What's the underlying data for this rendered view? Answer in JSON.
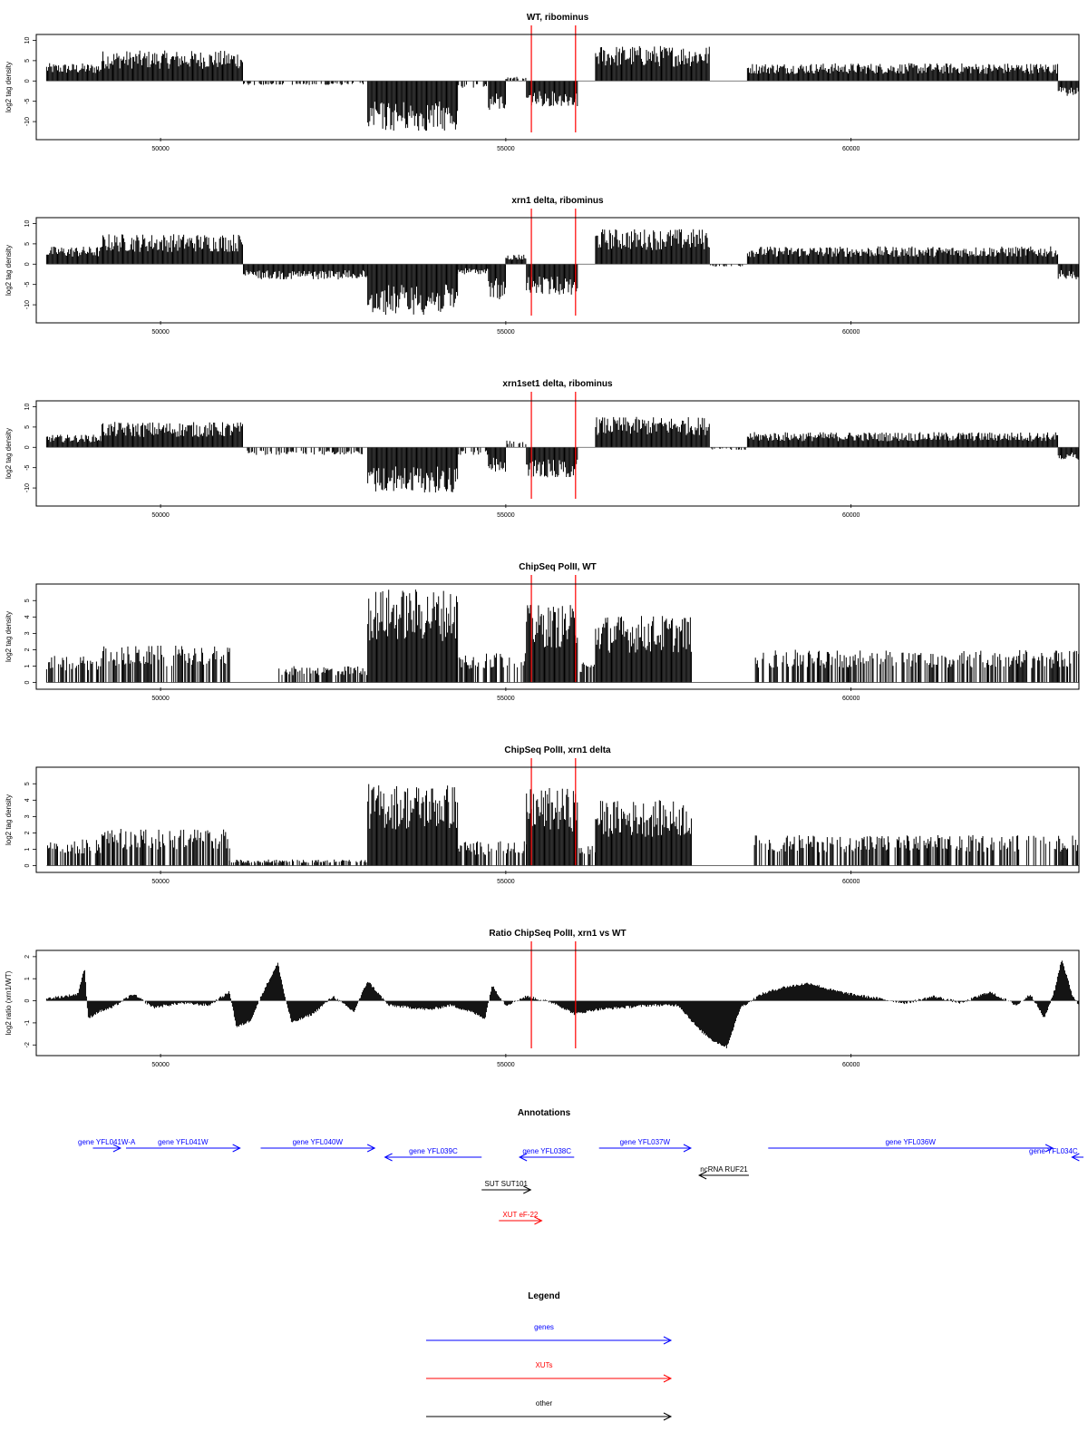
{
  "colors": {
    "gene": "#0000ff",
    "xut": "#ff0000",
    "other": "#000000",
    "marker": "#ff0000",
    "bars": "#000000"
  },
  "chart_data": [
    {
      "type": "bar",
      "title": "WT, ribominus",
      "ylabel": "log2 tag density",
      "xlim": [
        48200,
        63300
      ],
      "ylim": [
        -14,
        11
      ],
      "yticks": [
        10,
        5,
        0,
        -5,
        -10
      ],
      "xticks": [
        50000,
        55000,
        60000
      ],
      "markers": [
        55370,
        56010
      ],
      "grid": false,
      "segments": [
        {
          "x": [
            48350,
            49150
          ],
          "y": 3.5
        },
        {
          "x": [
            49150,
            51200
          ],
          "y": 6
        },
        {
          "x": [
            51200,
            53000
          ],
          "y": -0.8
        },
        {
          "x": [
            53000,
            54300
          ],
          "y": -10
        },
        {
          "x": [
            54300,
            54750
          ],
          "y": -1.5
        },
        {
          "x": [
            54750,
            55000
          ],
          "y": -6
        },
        {
          "x": [
            55000,
            55300
          ],
          "y": 0.8
        },
        {
          "x": [
            55300,
            56050
          ],
          "y": -5
        },
        {
          "x": [
            56050,
            56300
          ],
          "y": 0
        },
        {
          "x": [
            56300,
            57950
          ],
          "y": 7
        },
        {
          "x": [
            57950,
            58500
          ],
          "y": 0
        },
        {
          "x": [
            58500,
            63000
          ],
          "y": 3.5
        },
        {
          "x": [
            63000,
            63300
          ],
          "y": -3
        }
      ]
    },
    {
      "type": "bar",
      "title": "xrn1 delta, ribominus",
      "ylabel": "log2 tag density",
      "xlim": [
        48200,
        63300
      ],
      "ylim": [
        -14,
        11
      ],
      "yticks": [
        10,
        5,
        0,
        -5,
        -10
      ],
      "xticks": [
        50000,
        55000,
        60000
      ],
      "markers": [
        55370,
        56010
      ],
      "grid": false,
      "segments": [
        {
          "x": [
            48350,
            49150
          ],
          "y": 3.5
        },
        {
          "x": [
            49150,
            51200
          ],
          "y": 6
        },
        {
          "x": [
            51200,
            53000
          ],
          "y": -3
        },
        {
          "x": [
            53000,
            54300
          ],
          "y": -10
        },
        {
          "x": [
            54300,
            54750
          ],
          "y": -2
        },
        {
          "x": [
            54750,
            55000
          ],
          "y": -7
        },
        {
          "x": [
            55000,
            55300
          ],
          "y": 2
        },
        {
          "x": [
            55300,
            56050
          ],
          "y": -6
        },
        {
          "x": [
            56050,
            56300
          ],
          "y": 0
        },
        {
          "x": [
            56300,
            57950
          ],
          "y": 7
        },
        {
          "x": [
            57950,
            58500
          ],
          "y": -0.5
        },
        {
          "x": [
            58500,
            63000
          ],
          "y": 3.5
        },
        {
          "x": [
            63000,
            63300
          ],
          "y": -3
        }
      ]
    },
    {
      "type": "bar",
      "title": "xrn1set1 delta, ribominus",
      "ylabel": "log2 tag density",
      "xlim": [
        48200,
        63300
      ],
      "ylim": [
        -14,
        11
      ],
      "yticks": [
        10,
        5,
        0,
        -5,
        -10
      ],
      "xticks": [
        50000,
        55000,
        60000
      ],
      "markers": [
        55370,
        56010
      ],
      "grid": false,
      "segments": [
        {
          "x": [
            48350,
            49150
          ],
          "y": 2.5
        },
        {
          "x": [
            49150,
            51200
          ],
          "y": 5
        },
        {
          "x": [
            51200,
            53000
          ],
          "y": -1.5
        },
        {
          "x": [
            53000,
            54300
          ],
          "y": -9
        },
        {
          "x": [
            54300,
            54750
          ],
          "y": -1.5
        },
        {
          "x": [
            54750,
            55000
          ],
          "y": -5
        },
        {
          "x": [
            55000,
            55300
          ],
          "y": 1.5
        },
        {
          "x": [
            55300,
            56050
          ],
          "y": -6
        },
        {
          "x": [
            56050,
            56300
          ],
          "y": 0
        },
        {
          "x": [
            56300,
            57950
          ],
          "y": 6
        },
        {
          "x": [
            57950,
            58500
          ],
          "y": -0.5
        },
        {
          "x": [
            58500,
            63000
          ],
          "y": 3
        },
        {
          "x": [
            63000,
            63300
          ],
          "y": -2.5
        }
      ]
    },
    {
      "type": "bar",
      "title": "ChipSeq PolII, WT",
      "ylabel": "log2 tag density",
      "xlim": [
        48200,
        63300
      ],
      "ylim": [
        -0.3,
        5.9
      ],
      "yticks": [
        5,
        4,
        3,
        2,
        1,
        0
      ],
      "xticks": [
        50000,
        55000,
        60000
      ],
      "markers": [
        55370,
        56010
      ],
      "grid": false,
      "segments": [
        {
          "x": [
            48350,
            49150
          ],
          "y": 1.3
        },
        {
          "x": [
            49150,
            51000
          ],
          "y": 1.8
        },
        {
          "x": [
            51000,
            51700
          ],
          "y": 0
        },
        {
          "x": [
            51700,
            53000
          ],
          "y": 0.8
        },
        {
          "x": [
            53000,
            54300
          ],
          "y": 4.6
        },
        {
          "x": [
            54300,
            55300
          ],
          "y": 1.5
        },
        {
          "x": [
            55300,
            56050
          ],
          "y": 3.8
        },
        {
          "x": [
            56050,
            56300
          ],
          "y": 1
        },
        {
          "x": [
            56300,
            57700
          ],
          "y": 3.3
        },
        {
          "x": [
            57700,
            58600
          ],
          "y": 0
        },
        {
          "x": [
            58600,
            63300
          ],
          "y": 1.6
        }
      ]
    },
    {
      "type": "bar",
      "title": "ChipSeq PolII, xrn1 delta",
      "ylabel": "log2 tag density",
      "xlim": [
        48200,
        63300
      ],
      "ylim": [
        -0.3,
        5.9
      ],
      "yticks": [
        5,
        4,
        3,
        2,
        1,
        0
      ],
      "xticks": [
        50000,
        55000,
        60000
      ],
      "markers": [
        55370,
        56010
      ],
      "grid": false,
      "segments": [
        {
          "x": [
            48350,
            49150
          ],
          "y": 1.3
        },
        {
          "x": [
            49150,
            51000
          ],
          "y": 1.8
        },
        {
          "x": [
            51000,
            53000
          ],
          "y": 0.3
        },
        {
          "x": [
            53000,
            54300
          ],
          "y": 4
        },
        {
          "x": [
            54300,
            55300
          ],
          "y": 1.2
        },
        {
          "x": [
            55300,
            56050
          ],
          "y": 3.8
        },
        {
          "x": [
            56050,
            56300
          ],
          "y": 1
        },
        {
          "x": [
            56300,
            57700
          ],
          "y": 3.2
        },
        {
          "x": [
            57700,
            58600
          ],
          "y": 0
        },
        {
          "x": [
            58600,
            63300
          ],
          "y": 1.5
        }
      ]
    },
    {
      "type": "area",
      "title": "Ratio ChipSeq PolII, xrn1 vs WT",
      "ylabel": "log2 ratio (xrn1/WT)",
      "xlim": [
        48200,
        63300
      ],
      "ylim": [
        -2.4,
        2.2
      ],
      "yticks": [
        2,
        1,
        0,
        -1,
        -2
      ],
      "xticks": [
        50000,
        55000,
        60000
      ],
      "markers": [
        55370,
        56010
      ],
      "grid": false,
      "x": [
        48350,
        48600,
        48800,
        48900,
        48950,
        49100,
        49300,
        49600,
        49900,
        50300,
        50700,
        51000,
        51100,
        51300,
        51500,
        51700,
        51800,
        51900,
        52200,
        52500,
        52800,
        53000,
        53300,
        53600,
        53900,
        54200,
        54500,
        54700,
        54800,
        55000,
        55300,
        55700,
        56000,
        56300,
        56700,
        57100,
        57500,
        57800,
        58000,
        58200,
        58400,
        58700,
        59000,
        59400,
        59700,
        60000,
        60400,
        60800,
        61200,
        61600,
        62000,
        62400,
        62600,
        62800,
        62950,
        63050,
        63200,
        63300
      ],
      "y": [
        0.1,
        0.2,
        0.3,
        1.5,
        -0.8,
        -0.5,
        -0.3,
        0.3,
        -0.3,
        -0.1,
        -0.2,
        0.4,
        -1.2,
        -0.9,
        0.5,
        1.7,
        0.2,
        -1.0,
        -0.6,
        0.2,
        -0.5,
        0.9,
        -0.2,
        -0.3,
        -0.4,
        -0.2,
        -0.5,
        -0.8,
        0.7,
        -0.2,
        0.2,
        -0.1,
        -0.6,
        -0.4,
        -0.3,
        -0.2,
        -0.2,
        -1.3,
        -1.8,
        -2.1,
        -0.3,
        0.3,
        0.6,
        0.8,
        0.5,
        0.3,
        0.1,
        -0.1,
        0.2,
        -0.1,
        0.4,
        -0.2,
        0.3,
        -0.8,
        0.5,
        1.9,
        0.3,
        -0.2
      ]
    }
  ],
  "annotations": {
    "title": "Annotations",
    "items": [
      {
        "label": "gene YFL041W-A",
        "kind": "gene",
        "dir": "right",
        "x": [
          49020,
          49420
        ],
        "row": 0
      },
      {
        "label": "gene YFL041W",
        "kind": "gene",
        "dir": "right",
        "x": [
          49500,
          51150
        ],
        "row": 0
      },
      {
        "label": "gene YFL040W",
        "kind": "gene",
        "dir": "right",
        "x": [
          51450,
          53100
        ],
        "row": 0
      },
      {
        "label": "gene YFL039C",
        "kind": "gene",
        "dir": "left",
        "x": [
          53250,
          54650
        ],
        "row": 1
      },
      {
        "label": "gene YFL038C",
        "kind": "gene",
        "dir": "left",
        "x": [
          55200,
          55990
        ],
        "row": 1
      },
      {
        "label": "gene YFL037W",
        "kind": "gene",
        "dir": "right",
        "x": [
          56350,
          57680
        ],
        "row": 0
      },
      {
        "label": "gene YFL036W",
        "kind": "gene",
        "dir": "right",
        "x": [
          58800,
          62920
        ],
        "row": 0
      },
      {
        "label": "gene YFL034C",
        "kind": "gene",
        "dir": "left",
        "x": [
          63200,
          63500
        ],
        "row": 1
      },
      {
        "label": "ncRNA RUF21",
        "kind": "other",
        "dir": "left",
        "x": [
          57800,
          58520
        ],
        "row": 2
      },
      {
        "label": "SUT SUT101",
        "kind": "other",
        "dir": "right",
        "x": [
          54650,
          55360
        ],
        "row": 3
      },
      {
        "label": "XUT eF-22",
        "kind": "xut",
        "dir": "right",
        "x": [
          54900,
          55520
        ],
        "row": 5
      }
    ]
  },
  "legend": {
    "title": "Legend",
    "items": [
      {
        "label": "genes",
        "kind": "gene"
      },
      {
        "label": "XUTs",
        "kind": "xut"
      },
      {
        "label": "other",
        "kind": "other"
      }
    ]
  }
}
